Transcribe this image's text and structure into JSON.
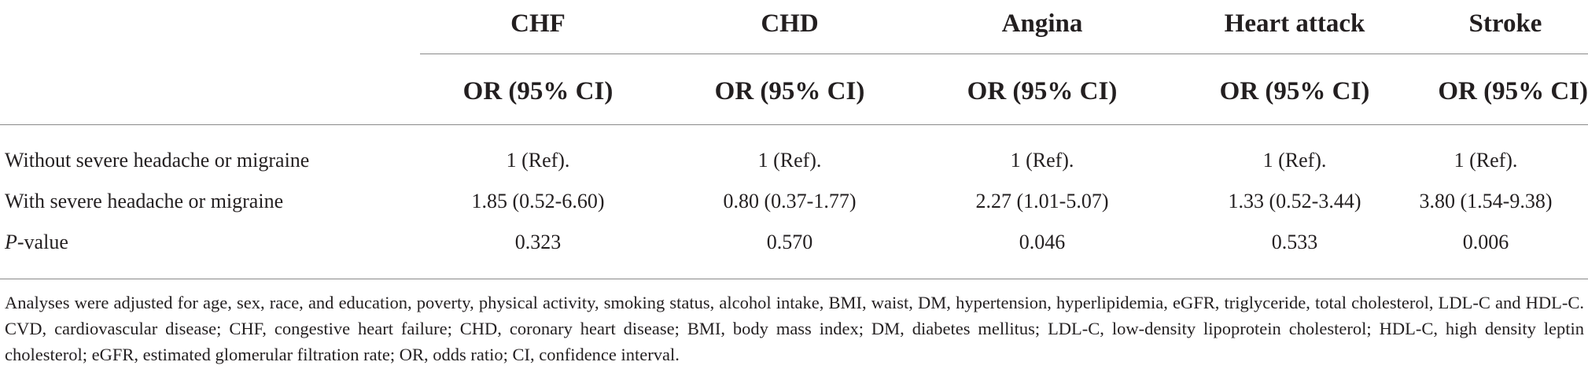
{
  "table": {
    "groups": [
      "CHF",
      "CHD",
      "Angina",
      "Heart attack",
      "Stroke"
    ],
    "subheaders": [
      "OR (95% CI)",
      "OR (95% CI)",
      "OR (95% CI)",
      "OR (95% CI)",
      "OR (95% CI)"
    ],
    "rows": [
      {
        "label": "Without severe headache or migraine",
        "cells": [
          "1 (Ref).",
          "1 (Ref).",
          "1 (Ref).",
          "1 (Ref).",
          "1 (Ref)."
        ]
      },
      {
        "label": "With severe headache or migraine",
        "cells": [
          "1.85 (0.52-6.60)",
          "0.80 (0.37-1.77)",
          "2.27 (1.01-5.07)",
          "1.33 (0.52-3.44)",
          "3.80 (1.54-9.38)"
        ]
      },
      {
        "label_italic": "P",
        "label_rest": "-value",
        "cells": [
          "0.323",
          "0.570",
          "0.046",
          "0.533",
          "0.006"
        ]
      }
    ]
  },
  "footnote": "Analyses were adjusted for age, sex, race, and education, poverty, physical activity, smoking status, alcohol intake, BMI, waist, DM, hypertension, hyperlipidemia, eGFR, triglyceride, total cholesterol, LDL-C and HDL-C. CVD, cardiovascular disease; CHF, congestive heart failure; CHD, coronary heart disease; BMI, body mass index; DM, diabetes mellitus; LDL-C, low-density lipoprotein cholesterol; HDL-C, high density leptin cholesterol; eGFR, estimated glomerular filtration rate; OR, odds ratio; CI, confidence interval."
}
